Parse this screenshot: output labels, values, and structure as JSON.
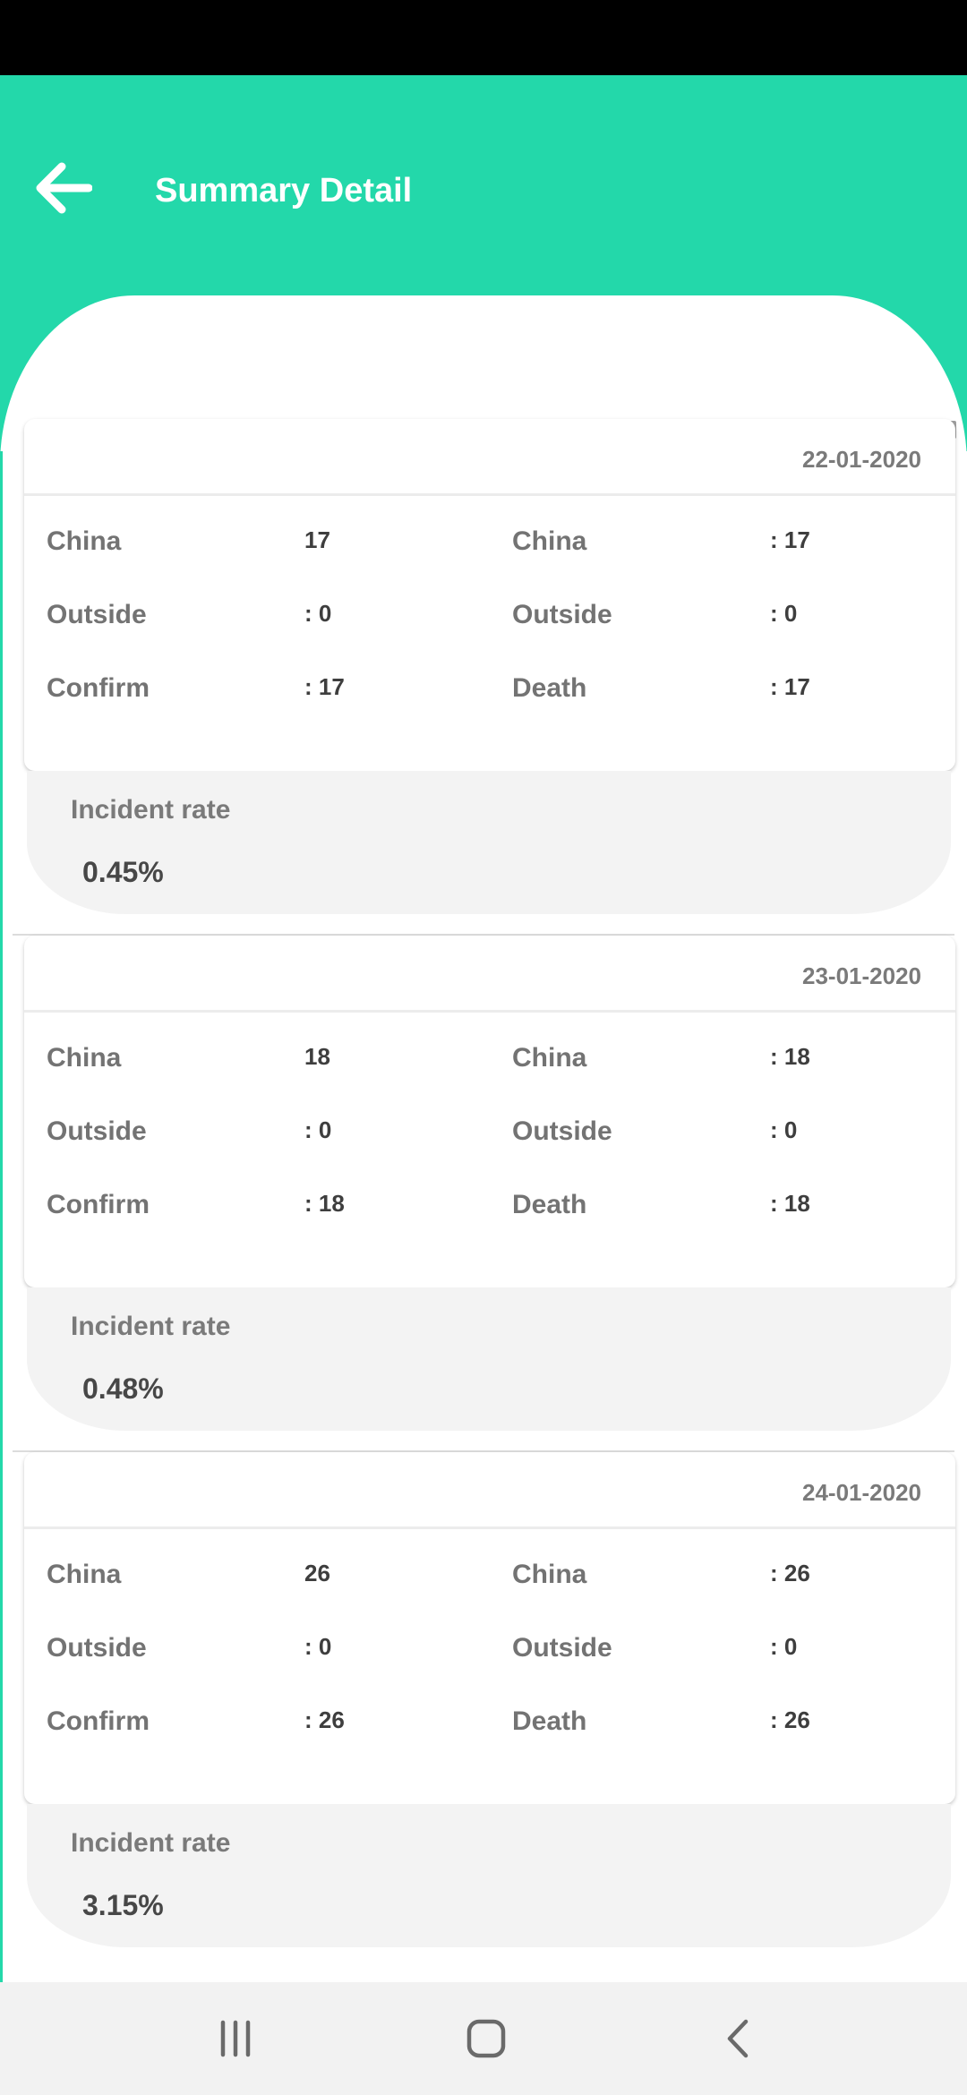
{
  "header": {
    "title": "Summary Detail",
    "accent_color": "#23d8aa",
    "back_icon": "arrow-left-icon"
  },
  "records": [
    {
      "date": "22-01-2020",
      "left": [
        {
          "label": "China",
          "value": "17"
        },
        {
          "label": "Outside",
          "value": ": 0"
        },
        {
          "label": "Confirm",
          "value": ": 17"
        }
      ],
      "right": [
        {
          "label": "China",
          "value": ": 17"
        },
        {
          "label": "Outside",
          "value": ": 0"
        },
        {
          "label": "Death",
          "value": ": 17"
        }
      ],
      "incident_label": "Incident rate",
      "incident_rate": "0.45%"
    },
    {
      "date": "23-01-2020",
      "left": [
        {
          "label": "China",
          "value": "18"
        },
        {
          "label": "Outside",
          "value": ": 0"
        },
        {
          "label": "Confirm",
          "value": ": 18"
        }
      ],
      "right": [
        {
          "label": "China",
          "value": ": 18"
        },
        {
          "label": "Outside",
          "value": ": 0"
        },
        {
          "label": "Death",
          "value": ": 18"
        }
      ],
      "incident_label": "Incident rate",
      "incident_rate": "0.48%"
    },
    {
      "date": "24-01-2020",
      "left": [
        {
          "label": "China",
          "value": "26"
        },
        {
          "label": "Outside",
          "value": ": 0"
        },
        {
          "label": "Confirm",
          "value": ": 26"
        }
      ],
      "right": [
        {
          "label": "China",
          "value": ": 26"
        },
        {
          "label": "Outside",
          "value": ": 0"
        },
        {
          "label": "Death",
          "value": ": 26"
        }
      ],
      "incident_label": "Incident rate",
      "incident_rate": "3.15%"
    }
  ],
  "nav": {
    "recents_icon": "recent-apps-icon",
    "home_icon": "home-icon",
    "back_icon": "back-chevron-icon"
  }
}
